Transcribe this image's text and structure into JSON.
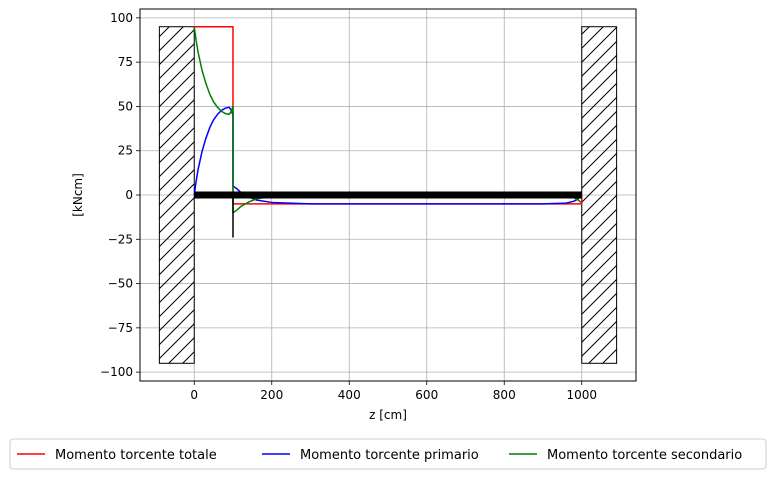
{
  "chart_data": {
    "type": "line",
    "title": "",
    "xlabel": "z [cm]",
    "ylabel": "[kNcm]",
    "xlim": [
      -140,
      1140
    ],
    "ylim": [
      -105,
      105
    ],
    "xticks": [
      0,
      200,
      400,
      600,
      800,
      1000
    ],
    "yticks": [
      -100,
      -75,
      -50,
      -25,
      0,
      25,
      50,
      75,
      100
    ],
    "xtick_labels": [
      "0",
      "200",
      "400",
      "600",
      "800",
      "1000"
    ],
    "ytick_labels": [
      "−100",
      "−75",
      "−50",
      "−25",
      "0",
      "25",
      "50",
      "75",
      "100"
    ],
    "grid": true,
    "legend_position": "bottom",
    "colors": {
      "totale": "#ff0000",
      "primario": "#0000ff",
      "secondario": "#008000",
      "beam": "#000000"
    },
    "supports": [
      {
        "x0": -90,
        "x1": 0,
        "y0": -95,
        "y1": 95
      },
      {
        "x0": 1000,
        "x1": 1090,
        "y0": -95,
        "y1": 95
      }
    ],
    "beam": {
      "x0": 0,
      "x1": 1000,
      "y": 0
    },
    "applied_load": {
      "x": 100,
      "y0": 0,
      "y1": -24
    },
    "series": [
      {
        "name": "Momento torcente totale",
        "color": "#ff0000",
        "x": [
          0,
          100,
          100,
          1000,
          1000
        ],
        "y": [
          95,
          95,
          -5,
          -5,
          0
        ]
      },
      {
        "name": "Momento torcente primario",
        "color": "#0000ff",
        "x": [
          0,
          5,
          10,
          20,
          30,
          40,
          50,
          60,
          70,
          80,
          90,
          95,
          100,
          100,
          110,
          120,
          140,
          160,
          200,
          300,
          500,
          700,
          900,
          960,
          980,
          990,
          1000
        ],
        "y": [
          0,
          8,
          14.5,
          24.5,
          32,
          38,
          42.5,
          45.5,
          47.7,
          49,
          49.5,
          48,
          45,
          5,
          3.5,
          1.5,
          -1,
          -2.8,
          -4.2,
          -5,
          -5,
          -5,
          -5,
          -4.6,
          -3.5,
          -2.3,
          -0.5
        ]
      },
      {
        "name": "Momento torcente secondario",
        "color": "#008000",
        "x": [
          0,
          5,
          10,
          20,
          30,
          40,
          50,
          60,
          70,
          80,
          90,
          95,
          100,
          100,
          110,
          120,
          140,
          160,
          200,
          300,
          500,
          700,
          900,
          960,
          980,
          990,
          1000
        ],
        "y": [
          95,
          87,
          80.5,
          70.5,
          63,
          57,
          52.5,
          49.5,
          47.3,
          46,
          45.5,
          47,
          50,
          -10,
          -8.5,
          -6.5,
          -4,
          -2.2,
          -0.8,
          0,
          0,
          0,
          0,
          -0.4,
          -1.5,
          -2.7,
          -4.5
        ]
      }
    ]
  }
}
